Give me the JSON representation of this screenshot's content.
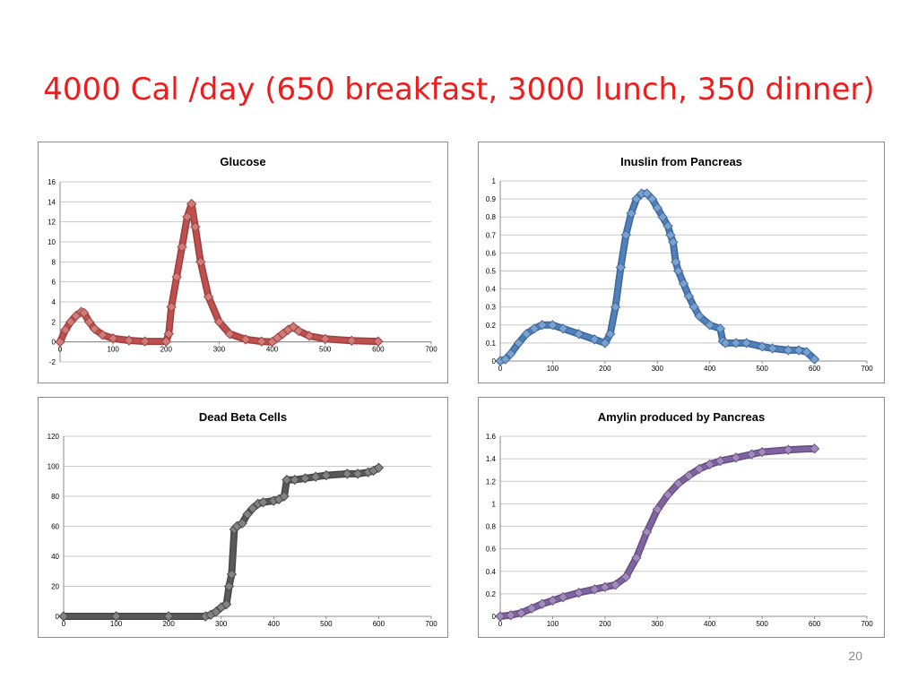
{
  "slide": {
    "title": "4000 Cal /day (650 breakfast, 3000 lunch, 350 dinner)",
    "page_number": "20",
    "title_color": "#ee1c1c"
  },
  "chart_data": [
    {
      "type": "line",
      "title": "Glucose",
      "xlabel": "",
      "ylabel": "",
      "xlim": [
        0,
        700
      ],
      "ylim": [
        -2,
        16
      ],
      "xticks": [
        0,
        100,
        200,
        300,
        400,
        500,
        600,
        700
      ],
      "yticks": [
        -2,
        0,
        2,
        4,
        6,
        8,
        10,
        12,
        14,
        16
      ],
      "grid": true,
      "legend": "none",
      "marker": "diamond",
      "series": [
        {
          "color": "#c0504d",
          "x": [
            0,
            10,
            20,
            30,
            40,
            45,
            55,
            65,
            80,
            100,
            130,
            160,
            200,
            205,
            210,
            220,
            230,
            240,
            248,
            255,
            265,
            280,
            300,
            320,
            350,
            380,
            400,
            410,
            420,
            430,
            440,
            450,
            470,
            500,
            550,
            600
          ],
          "y": [
            0,
            1.2,
            2.0,
            2.6,
            3.0,
            2.9,
            2.0,
            1.3,
            0.7,
            0.35,
            0.15,
            0.05,
            0.05,
            0.8,
            3.5,
            6.5,
            9.5,
            12.5,
            13.8,
            11.5,
            8.0,
            4.5,
            2.0,
            0.8,
            0.25,
            0.05,
            0.0,
            0.4,
            0.8,
            1.2,
            1.5,
            1.1,
            0.6,
            0.3,
            0.12,
            0.05
          ]
        }
      ]
    },
    {
      "type": "line",
      "title": "Inuslin from Pancreas",
      "xlabel": "",
      "ylabel": "",
      "xlim": [
        0,
        700
      ],
      "ylim": [
        0,
        1
      ],
      "xticks": [
        0,
        100,
        200,
        300,
        400,
        500,
        600,
        700
      ],
      "yticks": [
        0,
        0.1,
        0.2,
        0.3,
        0.4,
        0.5,
        0.6,
        0.7,
        0.8,
        0.9,
        1
      ],
      "grid": true,
      "legend": "none",
      "marker": "diamond",
      "series": [
        {
          "color": "#4f81bd",
          "x": [
            0,
            10,
            20,
            35,
            50,
            65,
            80,
            100,
            120,
            150,
            180,
            200,
            210,
            220,
            230,
            240,
            250,
            260,
            270,
            280,
            290,
            300,
            310,
            320,
            325,
            330,
            335,
            340,
            350,
            360,
            370,
            380,
            400,
            420,
            425,
            430,
            450,
            470,
            500,
            520,
            550,
            570,
            585,
            600
          ],
          "y": [
            0,
            0.01,
            0.04,
            0.1,
            0.15,
            0.18,
            0.2,
            0.2,
            0.18,
            0.15,
            0.12,
            0.1,
            0.15,
            0.3,
            0.52,
            0.7,
            0.82,
            0.9,
            0.93,
            0.93,
            0.9,
            0.85,
            0.8,
            0.75,
            0.7,
            0.66,
            0.55,
            0.5,
            0.43,
            0.36,
            0.3,
            0.25,
            0.2,
            0.18,
            0.11,
            0.1,
            0.1,
            0.1,
            0.08,
            0.07,
            0.06,
            0.06,
            0.05,
            0.01
          ]
        }
      ]
    },
    {
      "type": "line",
      "title": "Dead Beta Cells",
      "xlabel": "",
      "ylabel": "",
      "xlim": [
        0,
        700
      ],
      "ylim": [
        0,
        120
      ],
      "xticks": [
        0,
        100,
        200,
        300,
        400,
        500,
        600,
        700
      ],
      "yticks": [
        0,
        20,
        40,
        60,
        80,
        100,
        120
      ],
      "grid": true,
      "legend": "none",
      "marker": "diamond",
      "series": [
        {
          "color": "#595959",
          "x": [
            0,
            100,
            200,
            270,
            280,
            290,
            300,
            310,
            315,
            320,
            325,
            330,
            340,
            350,
            360,
            370,
            380,
            400,
            410,
            420,
            425,
            440,
            460,
            480,
            500,
            540,
            560,
            580,
            590,
            600
          ],
          "y": [
            0,
            0,
            0,
            0,
            1,
            3,
            6,
            8,
            20,
            28,
            58,
            60,
            62,
            68,
            72,
            75,
            76,
            77,
            78,
            80,
            91,
            91,
            92,
            93,
            94,
            95,
            95,
            96,
            97,
            99
          ]
        }
      ]
    },
    {
      "type": "line",
      "title": "Amylin produced by Pancreas",
      "xlabel": "",
      "ylabel": "",
      "xlim": [
        0,
        700
      ],
      "ylim": [
        0,
        1.6
      ],
      "xticks": [
        0,
        100,
        200,
        300,
        400,
        500,
        600,
        700
      ],
      "yticks": [
        0,
        0.2,
        0.4,
        0.6,
        0.8,
        1,
        1.2,
        1.4,
        1.6
      ],
      "grid": true,
      "legend": "none",
      "marker": "diamond",
      "series": [
        {
          "color": "#8064a2",
          "x": [
            0,
            20,
            40,
            60,
            80,
            100,
            120,
            150,
            180,
            200,
            220,
            240,
            260,
            280,
            300,
            320,
            340,
            360,
            380,
            400,
            420,
            450,
            480,
            500,
            550,
            600
          ],
          "y": [
            0,
            0.01,
            0.03,
            0.07,
            0.11,
            0.14,
            0.17,
            0.21,
            0.24,
            0.26,
            0.28,
            0.35,
            0.52,
            0.75,
            0.95,
            1.08,
            1.18,
            1.25,
            1.31,
            1.35,
            1.38,
            1.41,
            1.44,
            1.46,
            1.48,
            1.49
          ]
        }
      ]
    }
  ]
}
